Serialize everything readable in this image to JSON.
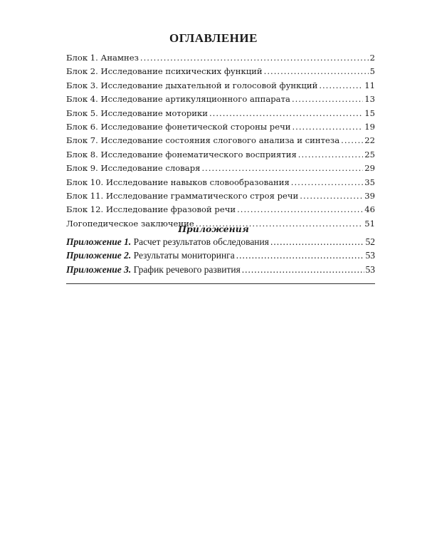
{
  "title": "ОГЛАВЛЕНИЕ",
  "entries": [
    {
      "label": "Блок 1. Анамнез",
      "page": "2"
    },
    {
      "label": "Блок 2. Исследование психических функций",
      "page": "5"
    },
    {
      "label": "Блок 3. Исследование дыхательной и голосовой функций",
      "page": "11"
    },
    {
      "label": "Блок 4. Исследование артикуляционного аппарата",
      "page": "13"
    },
    {
      "label": "Блок 5. Исследование моторики",
      "page": "15"
    },
    {
      "label": "Блок 6.  Исследование фонетической стороны речи",
      "page": "19"
    },
    {
      "label": "Блок 7. Исследование состояния слогового анализа и синтеза",
      "page": "22"
    },
    {
      "label": "Блок 8. Исследование фонематического восприятия",
      "page": "25"
    },
    {
      "label": "Блок 9. Исследование словаря",
      "page": "29"
    },
    {
      "label": "Блок 10. Исследование навыков словообразования",
      "page": "35"
    },
    {
      "label": "Блок 11. Исследование грамматического строя речи",
      "page": "39"
    },
    {
      "label": "Блок 12. Исследование фразовой речи",
      "page": "46"
    },
    {
      "label": "Логопедическое заключение",
      "page": "51"
    }
  ],
  "appendices_heading": "Приложения",
  "appendices": [
    {
      "prefix": "Приложение 1.",
      "label": " Расчет результатов обследования",
      "page": "52"
    },
    {
      "prefix": "Приложение 2.",
      "label": " Результаты мониторинга",
      "page": "53"
    },
    {
      "prefix": "Приложение 3.",
      "label": " График речевого развития",
      "page": "53"
    }
  ]
}
